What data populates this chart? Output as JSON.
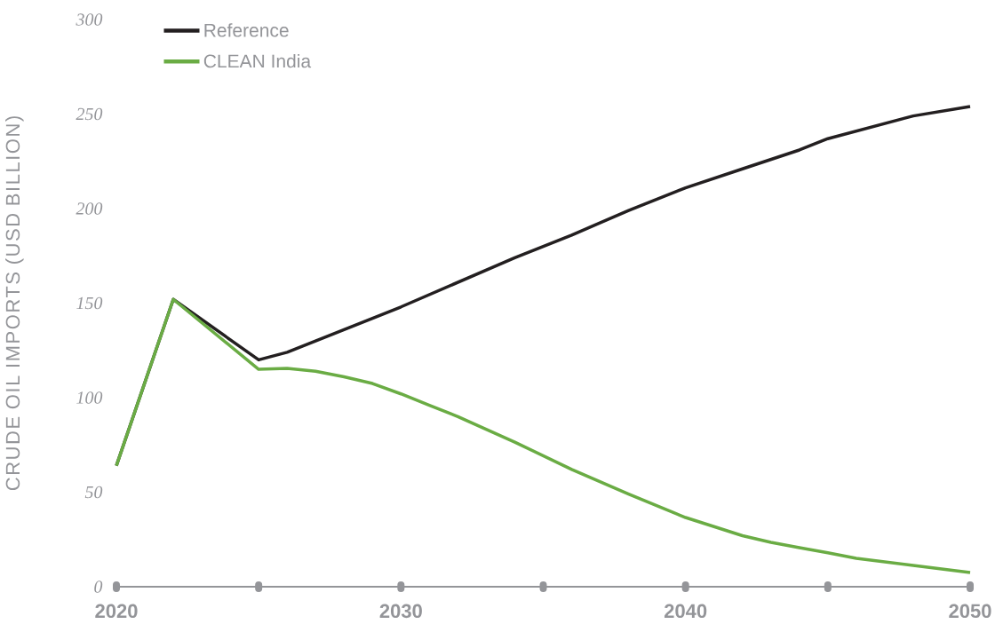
{
  "chart_data": {
    "type": "line",
    "ylabel": "CRUDE OIL IMPORTS (USD BILLION)",
    "xlim": [
      2020,
      2050
    ],
    "ylim": [
      0,
      300
    ],
    "xticks": [
      2020,
      {
        "value": 2025,
        "label": null
      },
      2030,
      {
        "value": 2035,
        "label": null
      },
      2040,
      {
        "value": 2045,
        "label": null
      },
      2050
    ],
    "yticks": [
      0,
      50,
      100,
      150,
      200,
      250,
      300
    ],
    "grid": false,
    "legend": "top left",
    "marker": "none",
    "line_style": "solid",
    "series": [
      {
        "name": "Reference",
        "color": "#231f20",
        "x": [
          2020,
          2022,
          2025,
          2026,
          2027,
          2028,
          2029,
          2030,
          2032,
          2034,
          2036,
          2038,
          2040,
          2042,
          2044,
          2045,
          2046,
          2048,
          2050
        ],
        "values": [
          64,
          152,
          120,
          124,
          130,
          136,
          142,
          148,
          161,
          174,
          186,
          199,
          211,
          221,
          231,
          237,
          241,
          249,
          254
        ]
      },
      {
        "name": "CLEAN India",
        "color": "#6aac44",
        "x": [
          2020,
          2022,
          2025,
          2026,
          2027,
          2028,
          2029,
          2030,
          2031,
          2032,
          2034,
          2036,
          2038,
          2040,
          2042,
          2043,
          2044,
          2045,
          2046,
          2048,
          2050
        ],
        "values": [
          64,
          152,
          115,
          115.5,
          114,
          111,
          107.5,
          102,
          96,
          90,
          76.5,
          62,
          49,
          36.6,
          27,
          23.5,
          20.7,
          18,
          15,
          11.3,
          7.5
        ]
      }
    ]
  }
}
